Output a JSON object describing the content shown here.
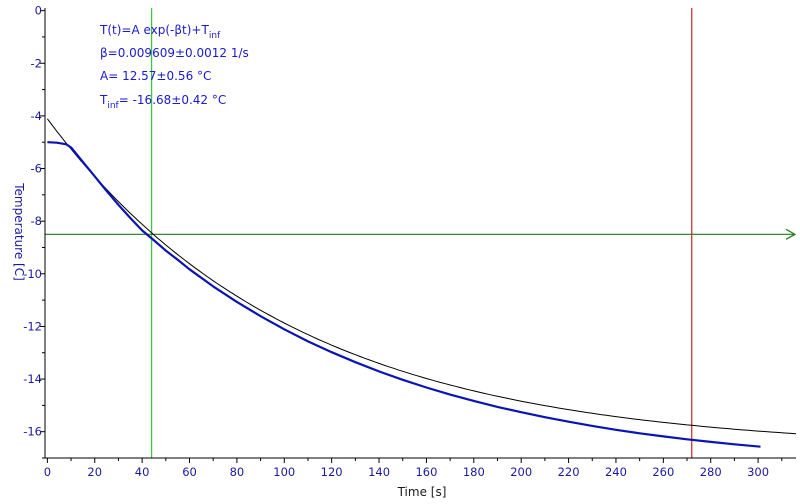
{
  "chart_data": {
    "type": "line",
    "xlabel": "Time [s]",
    "ylabel": "Temperature [C]",
    "xlim": [
      -1,
      316
    ],
    "ylim": [
      -17,
      0.1
    ],
    "x_ticks": [
      0,
      20,
      40,
      60,
      80,
      100,
      120,
      140,
      160,
      180,
      200,
      220,
      240,
      260,
      280,
      300
    ],
    "y_ticks": [
      0,
      -2,
      -4,
      -6,
      -8,
      -10,
      -12,
      -14,
      -16
    ],
    "grid": false,
    "legend": "none",
    "fit": {
      "A": 12.57,
      "beta": 0.009609,
      "T_inf": -16.68,
      "x_range": [
        0,
        316
      ],
      "color": "#000000"
    },
    "annotations": {
      "equation_base": "T(t)=A exp(-βt)+T",
      "equation_sub": "inf",
      "beta_text": "β=0.009609±0.0012 1/s",
      "a_text": "A= 12.57±0.56 °C",
      "tinf_prefix": "T",
      "tinf_sub": "inf",
      "tinf_value": "= -16.68±0.42 °C"
    },
    "series": [
      {
        "color": "#0a14b4",
        "x": [
          0,
          4,
          8,
          10,
          15,
          20,
          25,
          30,
          35,
          40,
          45,
          50,
          55,
          60,
          70,
          80,
          90,
          100,
          110,
          120,
          130,
          140,
          150,
          160,
          170,
          180,
          190,
          200,
          210,
          220,
          230,
          240,
          250,
          260,
          270,
          280,
          290,
          301
        ],
        "y": [
          -5.0,
          -5.02,
          -5.08,
          -5.2,
          -5.75,
          -6.3,
          -6.85,
          -7.38,
          -7.88,
          -8.35,
          -8.73,
          -9.12,
          -9.47,
          -9.83,
          -10.48,
          -11.07,
          -11.61,
          -12.11,
          -12.57,
          -12.98,
          -13.36,
          -13.71,
          -14.03,
          -14.32,
          -14.59,
          -14.83,
          -15.06,
          -15.26,
          -15.45,
          -15.62,
          -15.78,
          -15.93,
          -16.06,
          -16.18,
          -16.29,
          -16.39,
          -16.48,
          -16.57
        ]
      }
    ],
    "cursors": {
      "vertical_green_x": 44,
      "vertical_red_x": 272,
      "horizontal_green_y": -8.5,
      "green_color": "#33cc33",
      "red_color": "#cc2222",
      "hline_color": "#1f7a1f"
    }
  }
}
